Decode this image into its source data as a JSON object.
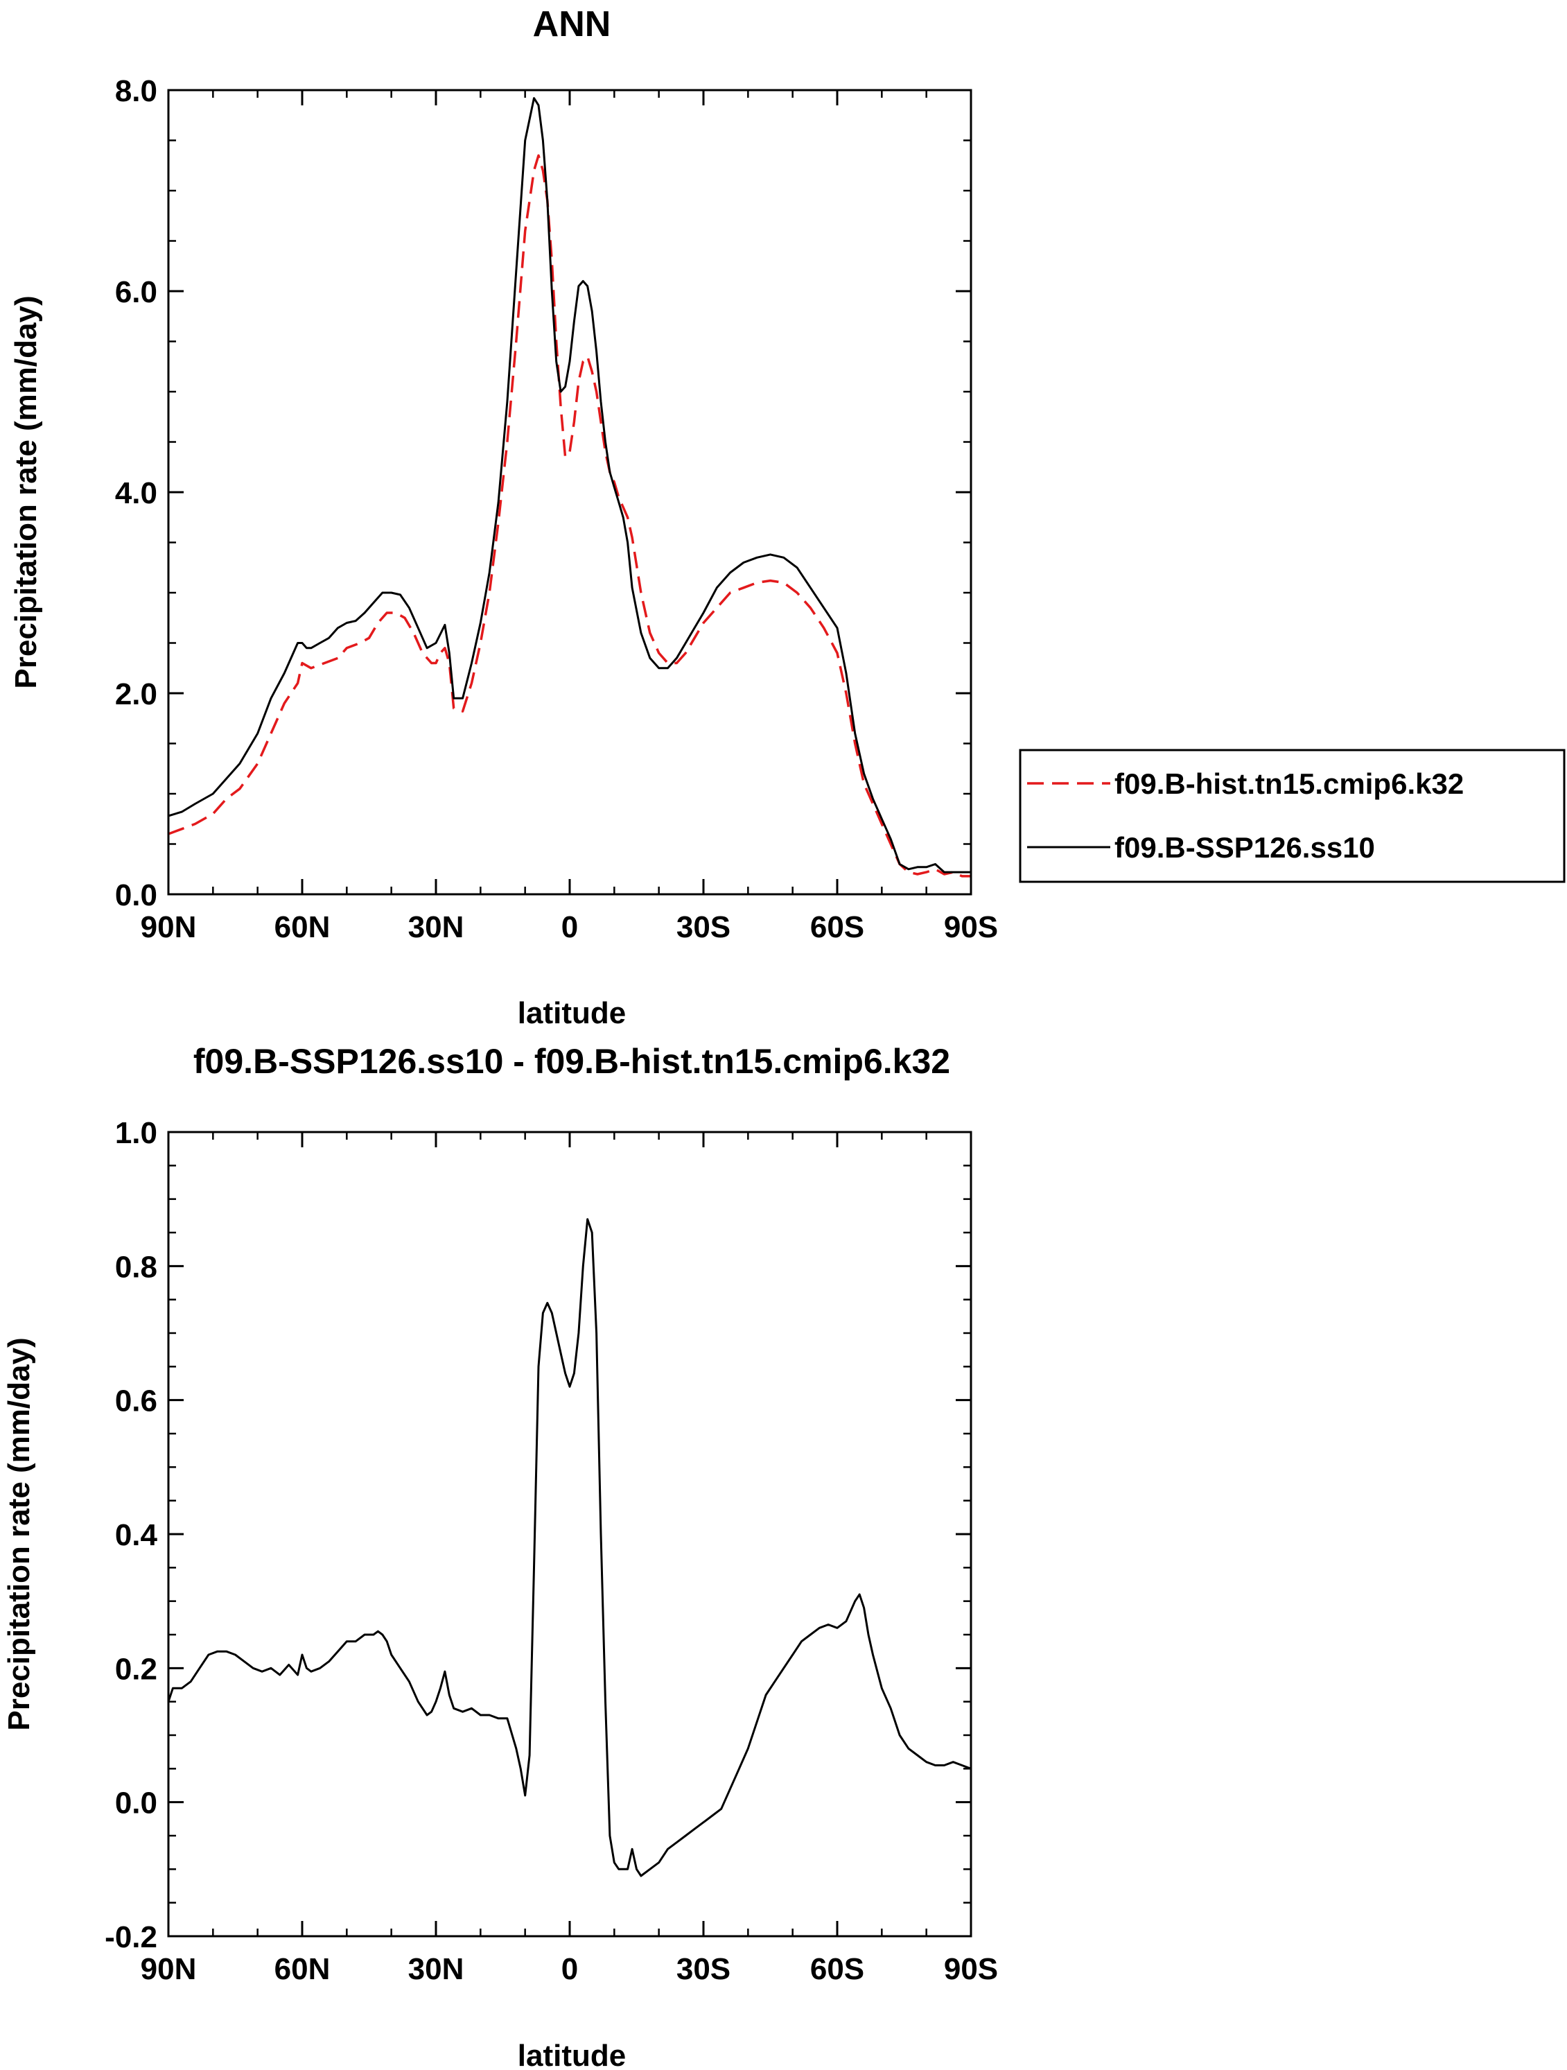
{
  "chart_data": [
    {
      "type": "line",
      "title": "ANN",
      "xlabel": "latitude",
      "ylabel": "Precipitation rate (mm/day)",
      "xlim": [
        90,
        -90
      ],
      "ylim": [
        0,
        8
      ],
      "x_tick_values": [
        90,
        60,
        30,
        0,
        -30,
        -60,
        -90
      ],
      "x_tick_labels": [
        "90N",
        "60N",
        "30N",
        "0",
        "30S",
        "60S",
        "90S"
      ],
      "y_tick_values": [
        0,
        2,
        4,
        6,
        8
      ],
      "y_tick_labels": [
        "0.0",
        "2.0",
        "4.0",
        "6.0",
        "8.0"
      ],
      "legend": [
        "f09.B-hist.tn15.cmip6.k32",
        "f09.B-SSP126.ss10"
      ],
      "legend_position": "right",
      "series": [
        {
          "name": "f09.B-hist.tn15.cmip6.k32",
          "color": "#e31a1c",
          "dash": "dashed",
          "x": [
            90,
            87,
            84,
            80,
            77,
            74,
            70,
            67,
            64,
            61,
            60,
            58,
            55,
            52,
            50,
            47,
            45,
            43,
            41,
            39,
            37,
            35,
            33,
            31,
            30,
            29,
            28,
            27,
            26,
            24,
            22,
            20,
            18,
            16,
            14,
            12,
            10,
            8,
            7,
            6,
            5,
            4,
            3,
            2,
            1,
            0,
            -1,
            -2,
            -3,
            -4,
            -5,
            -6,
            -7,
            -8,
            -9,
            -10,
            -11,
            -12,
            -13,
            -14,
            -16,
            -18,
            -20,
            -22,
            -24,
            -26,
            -28,
            -30,
            -33,
            -36,
            -39,
            -42,
            -45,
            -48,
            -51,
            -54,
            -57,
            -60,
            -62,
            -64,
            -66,
            -68,
            -70,
            -72,
            -74,
            -76,
            -78,
            -80,
            -82,
            -84,
            -86,
            -88,
            -90
          ],
          "y": [
            0.6,
            0.65,
            0.7,
            0.8,
            0.95,
            1.05,
            1.3,
            1.6,
            1.9,
            2.1,
            2.3,
            2.25,
            2.3,
            2.35,
            2.45,
            2.5,
            2.55,
            2.7,
            2.8,
            2.8,
            2.75,
            2.6,
            2.4,
            2.3,
            2.3,
            2.4,
            2.45,
            2.3,
            1.85,
            1.82,
            2.1,
            2.5,
            3.0,
            3.7,
            4.5,
            5.5,
            6.6,
            7.2,
            7.35,
            7.2,
            6.9,
            6.3,
            5.5,
            4.85,
            4.35,
            4.4,
            4.7,
            5.1,
            5.3,
            5.35,
            5.2,
            5.0,
            4.7,
            4.4,
            4.2,
            4.1,
            3.95,
            3.85,
            3.75,
            3.55,
            3.0,
            2.6,
            2.4,
            2.3,
            2.3,
            2.4,
            2.55,
            2.7,
            2.85,
            3.0,
            3.05,
            3.1,
            3.12,
            3.1,
            3.0,
            2.85,
            2.65,
            2.4,
            2.0,
            1.5,
            1.1,
            0.9,
            0.7,
            0.5,
            0.3,
            0.22,
            0.2,
            0.22,
            0.25,
            0.2,
            0.22,
            0.18,
            0.18
          ]
        },
        {
          "name": "f09.B-SSP126.ss10",
          "color": "#000000",
          "dash": "solid",
          "x": [
            90,
            87,
            84,
            80,
            77,
            74,
            70,
            67,
            64,
            61,
            60,
            59,
            58,
            56,
            54,
            52,
            50,
            48,
            46,
            44,
            42,
            40,
            38,
            36,
            34,
            32,
            30,
            28,
            27,
            26,
            24,
            22,
            20,
            18,
            16,
            14,
            12,
            10,
            8,
            7,
            6,
            5,
            4,
            3,
            2,
            1,
            0,
            -1,
            -2,
            -3,
            -4,
            -5,
            -6,
            -7,
            -8,
            -9,
            -10,
            -11,
            -12,
            -13,
            -14,
            -16,
            -18,
            -20,
            -22,
            -24,
            -26,
            -28,
            -30,
            -33,
            -36,
            -39,
            -42,
            -45,
            -48,
            -51,
            -54,
            -57,
            -60,
            -62,
            -64,
            -66,
            -68,
            -70,
            -72,
            -74,
            -76,
            -78,
            -80,
            -82,
            -84,
            -86,
            -88,
            -90
          ],
          "y": [
            0.78,
            0.82,
            0.9,
            1.0,
            1.15,
            1.3,
            1.6,
            1.95,
            2.2,
            2.5,
            2.5,
            2.45,
            2.45,
            2.5,
            2.55,
            2.65,
            2.7,
            2.72,
            2.8,
            2.9,
            3.0,
            3.0,
            2.98,
            2.85,
            2.65,
            2.45,
            2.5,
            2.68,
            2.4,
            1.95,
            1.95,
            2.3,
            2.7,
            3.2,
            3.9,
            4.9,
            6.2,
            7.5,
            7.92,
            7.85,
            7.5,
            6.9,
            6.0,
            5.3,
            5.0,
            5.05,
            5.3,
            5.7,
            6.05,
            6.1,
            6.05,
            5.8,
            5.4,
            4.9,
            4.5,
            4.2,
            4.05,
            3.9,
            3.75,
            3.5,
            3.05,
            2.6,
            2.35,
            2.25,
            2.25,
            2.35,
            2.5,
            2.65,
            2.8,
            3.05,
            3.2,
            3.3,
            3.35,
            3.38,
            3.35,
            3.25,
            3.05,
            2.85,
            2.65,
            2.2,
            1.6,
            1.2,
            0.95,
            0.75,
            0.55,
            0.3,
            0.25,
            0.27,
            0.27,
            0.3,
            0.22,
            0.22,
            0.22,
            0.22
          ]
        }
      ]
    },
    {
      "type": "line",
      "title": "f09.B-SSP126.ss10 - f09.B-hist.tn15.cmip6.k32",
      "xlabel": "latitude",
      "ylabel": "Precipitation rate (mm/day)",
      "xlim": [
        90,
        -90
      ],
      "ylim": [
        -0.2,
        1.0
      ],
      "x_tick_values": [
        90,
        60,
        30,
        0,
        -30,
        -60,
        -90
      ],
      "x_tick_labels": [
        "90N",
        "60N",
        "30N",
        "0",
        "30S",
        "60S",
        "90S"
      ],
      "y_tick_values": [
        -0.2,
        0,
        0.2,
        0.4,
        0.6,
        0.8,
        1.0
      ],
      "y_tick_labels": [
        "-0.2",
        "0.0",
        "0.2",
        "0.4",
        "0.6",
        "0.8",
        "1.0"
      ],
      "series": [
        {
          "name": "f09.B-SSP126.ss10 - f09.B-hist.tn15.cmip6.k32",
          "color": "#000000",
          "dash": "solid",
          "x": [
            90,
            89,
            87,
            85,
            83,
            81,
            79,
            77,
            75,
            73,
            71,
            69,
            67,
            65,
            63,
            61,
            60,
            59,
            58,
            56,
            54,
            52,
            50,
            48,
            46,
            44,
            43,
            42,
            41,
            40,
            38,
            36,
            34,
            32,
            31,
            30,
            29,
            28,
            27,
            26,
            24,
            22,
            20,
            18,
            16,
            14,
            12,
            11,
            10,
            9,
            8,
            7,
            6,
            5,
            4,
            3,
            2,
            1,
            0,
            -1,
            -2,
            -3,
            -4,
            -5,
            -6,
            -7,
            -8,
            -9,
            -10,
            -11,
            -12,
            -13,
            -14,
            -15,
            -16,
            -18,
            -20,
            -22,
            -24,
            -26,
            -28,
            -30,
            -32,
            -34,
            -36,
            -38,
            -40,
            -42,
            -44,
            -46,
            -48,
            -50,
            -52,
            -54,
            -56,
            -58,
            -60,
            -62,
            -64,
            -65,
            -66,
            -67,
            -68,
            -70,
            -72,
            -74,
            -76,
            -78,
            -80,
            -82,
            -84,
            -86,
            -88,
            -90
          ],
          "y": [
            0.15,
            0.17,
            0.17,
            0.18,
            0.2,
            0.22,
            0.225,
            0.225,
            0.22,
            0.21,
            0.2,
            0.195,
            0.2,
            0.19,
            0.205,
            0.19,
            0.22,
            0.2,
            0.195,
            0.2,
            0.21,
            0.225,
            0.24,
            0.24,
            0.25,
            0.25,
            0.255,
            0.25,
            0.24,
            0.22,
            0.2,
            0.18,
            0.15,
            0.13,
            0.135,
            0.15,
            0.17,
            0.195,
            0.16,
            0.14,
            0.135,
            0.14,
            0.13,
            0.13,
            0.125,
            0.125,
            0.08,
            0.05,
            0.01,
            0.07,
            0.35,
            0.65,
            0.73,
            0.745,
            0.73,
            0.7,
            0.67,
            0.64,
            0.62,
            0.64,
            0.7,
            0.8,
            0.87,
            0.85,
            0.7,
            0.4,
            0.15,
            -0.05,
            -0.09,
            -0.1,
            -0.1,
            -0.1,
            -0.07,
            -0.1,
            -0.11,
            -0.1,
            -0.09,
            -0.07,
            -0.06,
            -0.05,
            -0.04,
            -0.03,
            -0.02,
            -0.01,
            0.02,
            0.05,
            0.08,
            0.12,
            0.16,
            0.18,
            0.2,
            0.22,
            0.24,
            0.25,
            0.26,
            0.265,
            0.26,
            0.27,
            0.3,
            0.31,
            0.29,
            0.25,
            0.22,
            0.17,
            0.14,
            0.1,
            0.08,
            0.07,
            0.06,
            0.055,
            0.055,
            0.06,
            0.055,
            0.05
          ]
        }
      ]
    }
  ]
}
